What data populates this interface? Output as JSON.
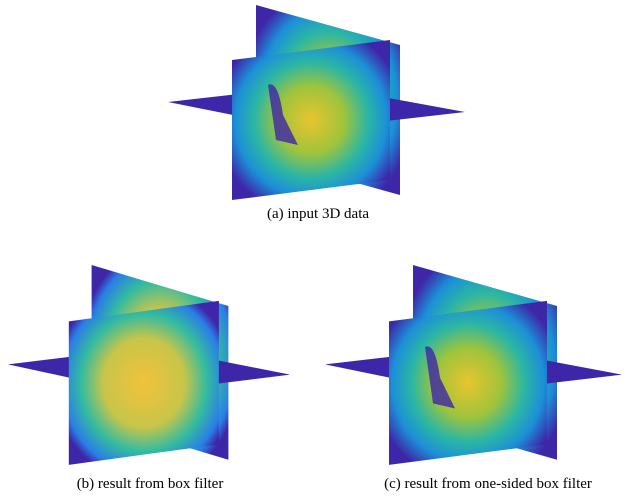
{
  "figure": {
    "subfigures": [
      {
        "caption": "(a) input 3D data"
      },
      {
        "caption": "(b) result from box filter"
      },
      {
        "caption": "(c) result from one-sided box filter"
      }
    ]
  }
}
